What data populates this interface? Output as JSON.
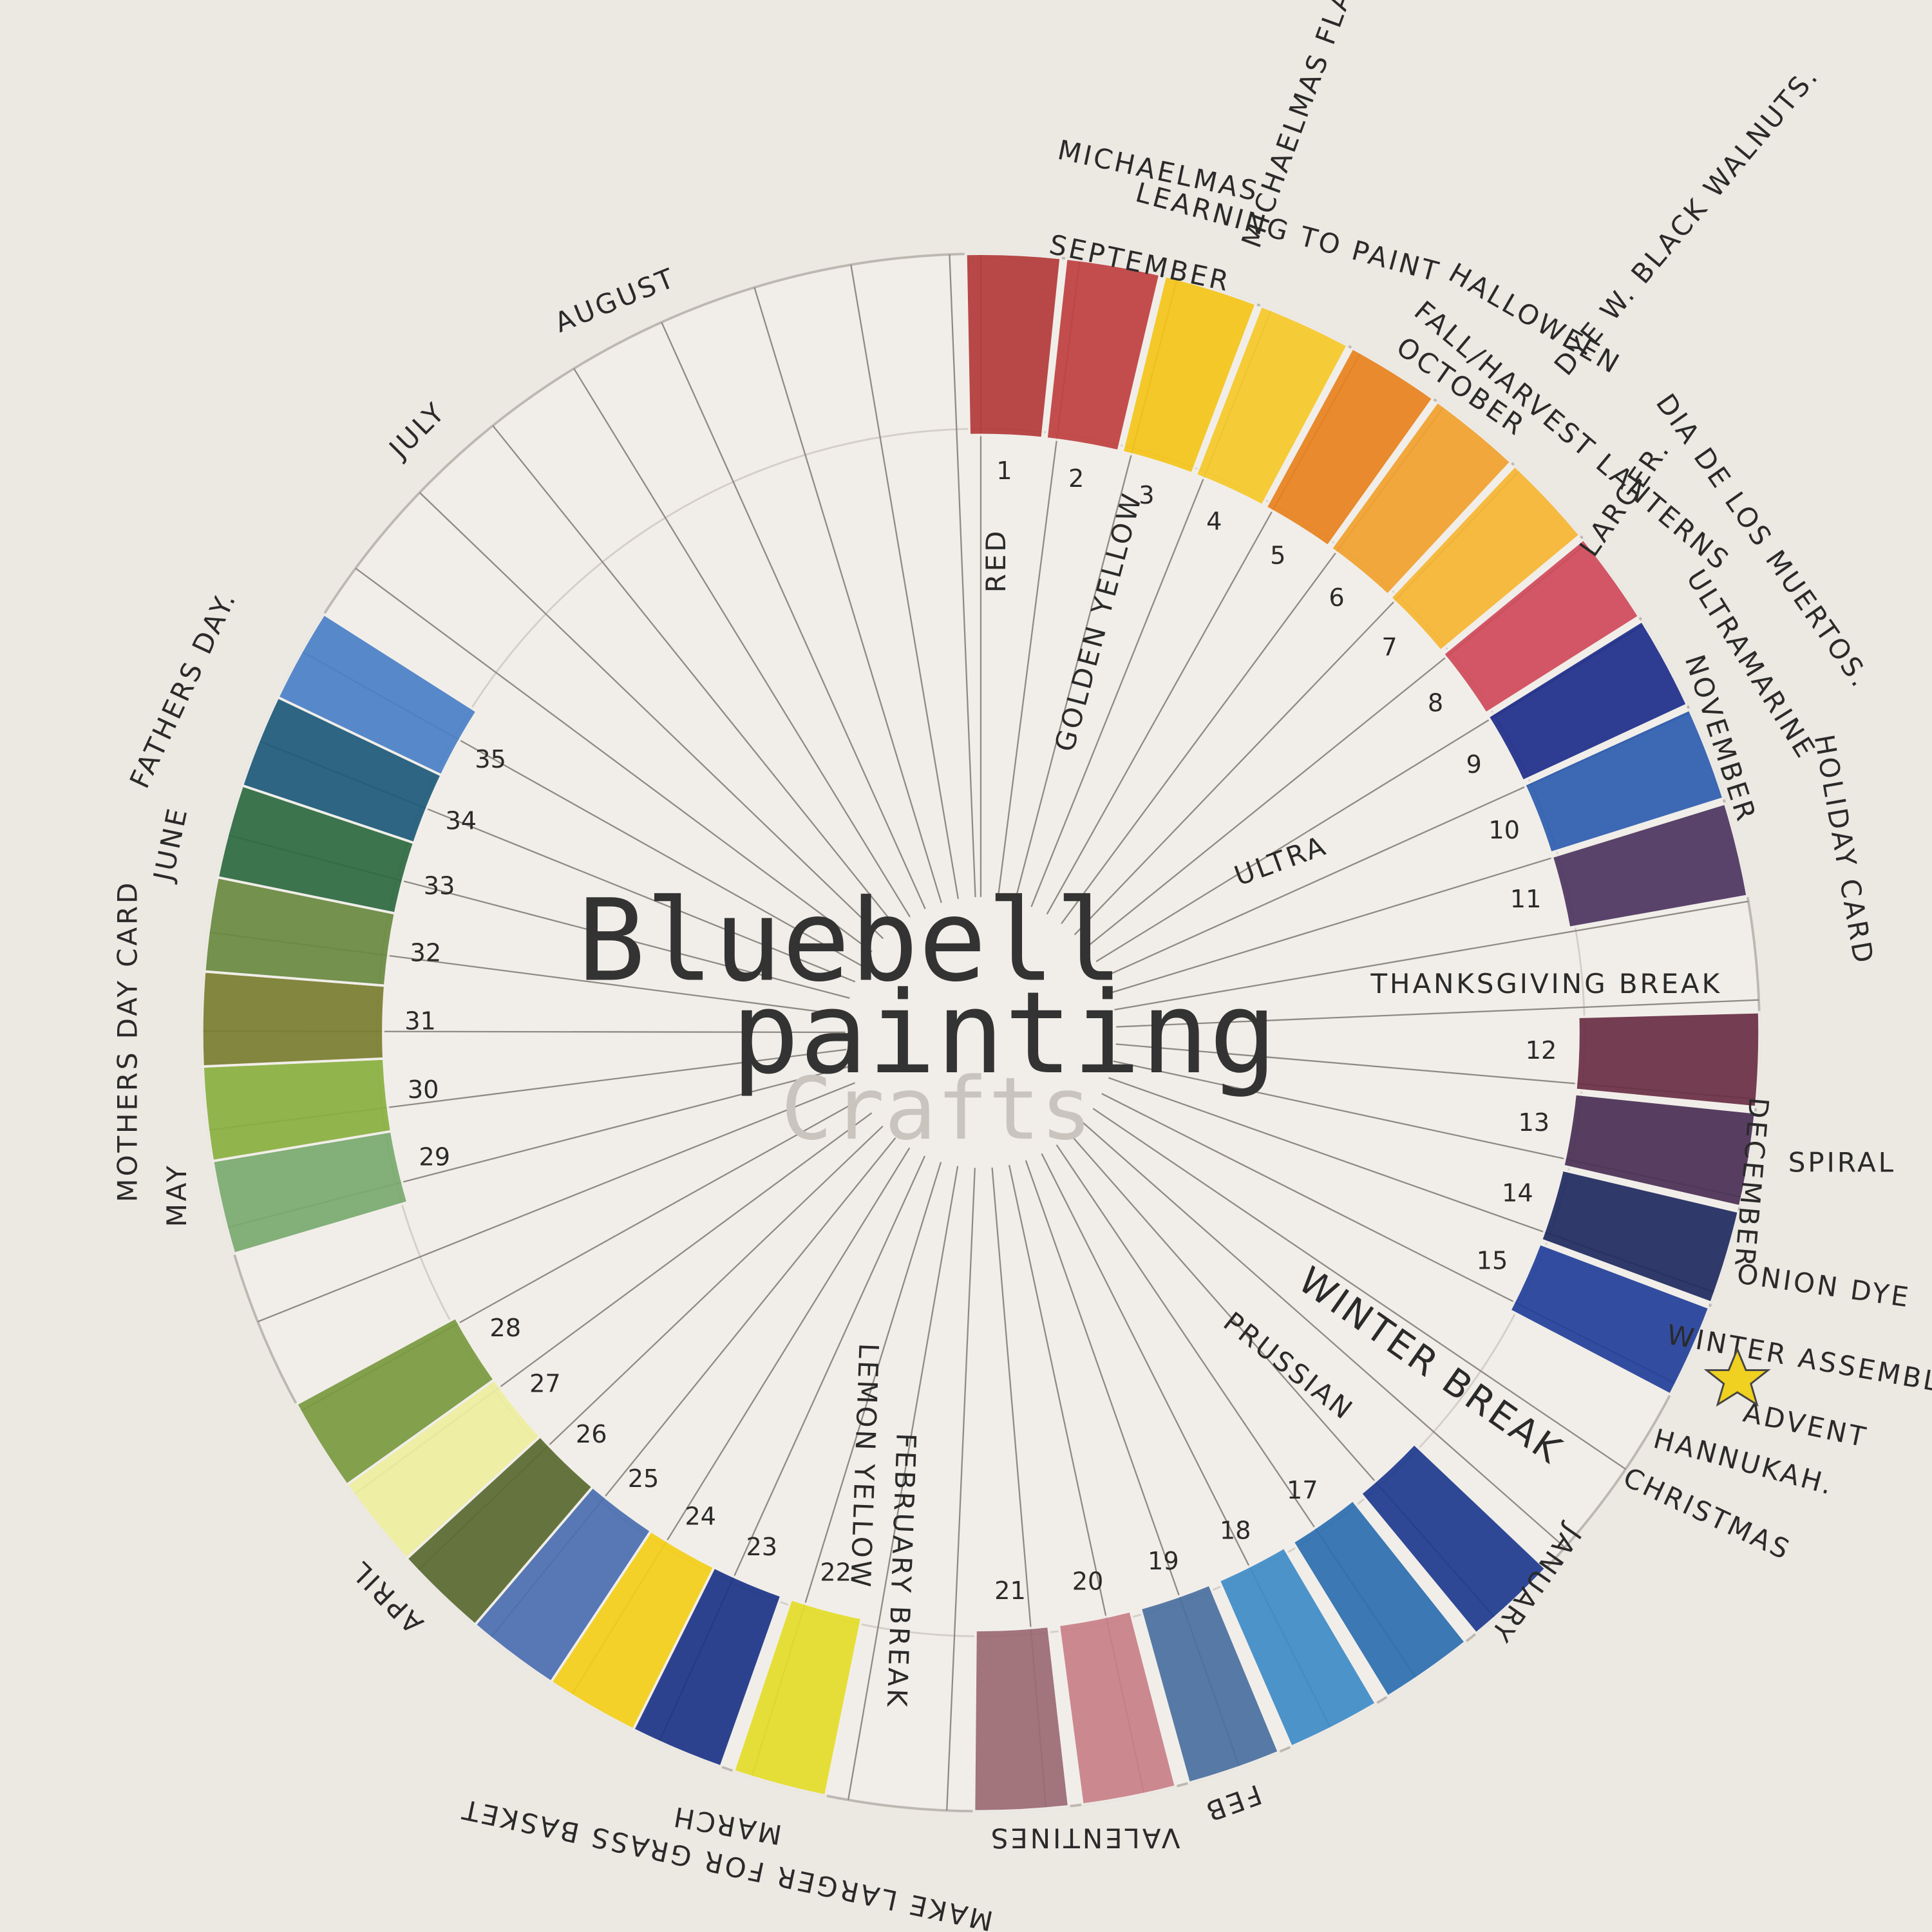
{
  "title": {
    "line1": "Bluebell",
    "line2": "painting",
    "faint": "Crafts"
  },
  "months": {
    "september": "SEPTEMBER",
    "october": "OCTOBER",
    "november": "NOVEMBER",
    "december": "DECEMBER",
    "january": "JANUARY",
    "feb": "FEB",
    "march": "MARCH",
    "april": "APRIL",
    "may": "MAY",
    "june": "JUNE",
    "july": "JULY",
    "august": "AUGUST"
  },
  "breaks": {
    "thanksgiving": "THANKSGIVING BREAK",
    "winter": "WINTER BREAK",
    "february": "FEBRUARY BREAK"
  },
  "events": {
    "michaelmas": "MICHAELMAS",
    "michaelmas_flags": "MICHAELMAS FLAGS",
    "learning": "LEARNING TO PAINT",
    "halloween": "HALLOWEEN",
    "walnuts": "DYE W. BLACK WALNUTS.",
    "lanterns": "FALL/HARVEST LANTERNS",
    "larger": "LARGER.",
    "dia": "DIA DE LOS MUERTOS.",
    "ultramarine": "ULTRAMARINE",
    "holiday_card": "HOLIDAY CARD",
    "spiral": "SPIRAL",
    "onion": "ONION DYE",
    "assembly": "WINTER ASSEMBLY",
    "advent": "ADVENT",
    "hannukah": "HANNUKAH.",
    "christmas": "CHRISTMAS",
    "valentines": "VALENTINES",
    "basket": "MAKE LARGER FOR GRASS BASKET",
    "mothers_day": "MOTHERS DAY CARD",
    "fathers_day": "FATHERS DAY."
  },
  "paints": {
    "red": "RED",
    "golden": "GOLDEN YELLOW",
    "ultra": "ULTRA",
    "prussian": "PRUSSIAN",
    "lemon": "LEMON YELLOW"
  },
  "swatches": [
    {
      "number": "1",
      "color": "#b33a3a"
    },
    {
      "number": "2",
      "color": "#c04040"
    },
    {
      "number": "3",
      "color": "#f5c518"
    },
    {
      "number": "4",
      "color": "#f7c92a"
    },
    {
      "number": "5",
      "color": "#e8821e"
    },
    {
      "number": "6",
      "color": "#f2a22e"
    },
    {
      "number": "7",
      "color": "#f7b632"
    },
    {
      "number": "8",
      "color": "#d04a5a"
    },
    {
      "number": "9",
      "color": "#1e2d8a"
    },
    {
      "number": "10",
      "color": "#2e5db0"
    },
    {
      "number": "11",
      "color": "#4e3560"
    },
    {
      "number": "12",
      "color": "#6a2f45"
    },
    {
      "number": "13",
      "color": "#4a3055"
    },
    {
      "number": "14",
      "color": "#1f2a60"
    },
    {
      "number": "15",
      "color": "#22409a"
    },
    {
      "number": null,
      "color": "#1e3a8f"
    },
    {
      "number": "17",
      "color": "#2c6fb0"
    },
    {
      "number": "18",
      "color": "#3f8cc8"
    },
    {
      "number": "19",
      "color": "#4a70a0"
    },
    {
      "number": "20",
      "color": "#c98088"
    },
    {
      "number": "21",
      "color": "#9c6a72"
    },
    {
      "number": "22",
      "color": "#e5dd2a"
    },
    {
      "number": "23",
      "color": "#1d3488"
    },
    {
      "number": "24",
      "color": "#f4cf18"
    },
    {
      "number": "25",
      "color": "#4a6eb0"
    },
    {
      "number": "26",
      "color": "#5a6a30"
    },
    {
      "number": "27",
      "color": "#eeeea0"
    },
    {
      "number": "28",
      "color": "#7a9a40"
    },
    {
      "number": "29",
      "color": "#7aaa70"
    },
    {
      "number": "30",
      "color": "#8ab040"
    },
    {
      "number": "31",
      "color": "#7a7e30"
    },
    {
      "number": "32",
      "color": "#6a8a40"
    },
    {
      "number": "33",
      "color": "#2d6a40"
    },
    {
      "number": "34",
      "color": "#1d5a7a"
    },
    {
      "number": "35",
      "color": "#4a80c8"
    }
  ]
}
